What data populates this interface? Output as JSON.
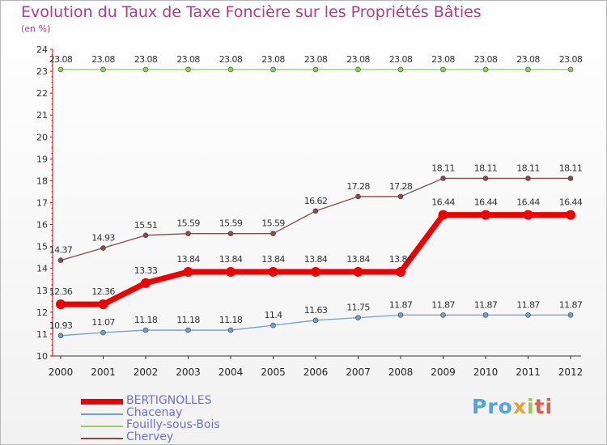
{
  "title": "Evolution du Taux de Taxe Foncière sur les Propriétés Bâties",
  "subtitle": "(en %)",
  "logo": {
    "parts": [
      "Pro",
      "x",
      "i",
      "ti"
    ]
  },
  "chart_data": {
    "type": "line",
    "x": [
      "2000",
      "2001",
      "2002",
      "2003",
      "2004",
      "2005",
      "2006",
      "2007",
      "2008",
      "2009",
      "2010",
      "2011",
      "2012"
    ],
    "ylim": [
      10,
      24
    ],
    "yticks": [
      "10",
      "11",
      "12",
      "13",
      "14",
      "15",
      "16",
      "17",
      "18",
      "19",
      "20",
      "21",
      "22",
      "23",
      "24"
    ],
    "grid": false,
    "legend_position": "bottom-left",
    "series": [
      {
        "name": "BERTIGNOLLES",
        "color": "#ee0000",
        "thick": true,
        "values": [
          12.36,
          12.36,
          13.33,
          13.84,
          13.84,
          13.84,
          13.84,
          13.84,
          13.84,
          16.44,
          16.44,
          16.44,
          16.44
        ],
        "labels": [
          "12.36",
          "12.36",
          "13.33",
          "13.84",
          "13.84",
          "13.84",
          "13.84",
          "13.84",
          "13.84",
          "16.44",
          "16.44",
          "16.44",
          "16.44"
        ]
      },
      {
        "name": "Chacenay",
        "color": "#6e9fcf",
        "thick": false,
        "values": [
          10.93,
          11.07,
          11.18,
          11.18,
          11.18,
          11.4,
          11.63,
          11.75,
          11.87,
          11.87,
          11.87,
          11.87,
          11.87
        ],
        "labels": [
          "10.93",
          "11.07",
          "11.18",
          "11.18",
          "11.18",
          "11.4",
          "11.63",
          "11.75",
          "11.87",
          "11.87",
          "11.87",
          "11.87",
          "11.87"
        ]
      },
      {
        "name": "Fouilly-sous-Bois",
        "color": "#8fd05a",
        "thick": false,
        "values": [
          23.08,
          23.08,
          23.08,
          23.08,
          23.08,
          23.08,
          23.08,
          23.08,
          23.08,
          23.08,
          23.08,
          23.08,
          23.08
        ],
        "labels": [
          "23.08",
          "23.08",
          "23.08",
          "23.08",
          "23.08",
          "23.08",
          "23.08",
          "23.08",
          "23.08",
          "23.08",
          "23.08",
          "23.08",
          "23.08"
        ]
      },
      {
        "name": "Chervey",
        "color": "#8a4b4b",
        "thick": false,
        "values": [
          14.37,
          14.93,
          15.51,
          15.59,
          15.59,
          15.59,
          16.62,
          17.28,
          17.28,
          18.11,
          18.11,
          18.11,
          18.11
        ],
        "labels": [
          "14.37",
          "14.93",
          "15.51",
          "15.59",
          "15.59",
          "15.59",
          "16.62",
          "17.28",
          "17.28",
          "18.11",
          "18.11",
          "18.11",
          "18.11"
        ]
      }
    ]
  }
}
